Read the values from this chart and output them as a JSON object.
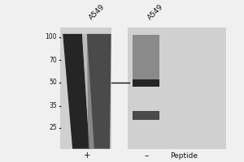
{
  "bg_color": "#f0f0f0",
  "mw_labels": [
    "100",
    "70",
    "50",
    "35",
    "25"
  ],
  "mw_values": [
    100,
    70,
    50,
    35,
    25
  ],
  "col_labels": [
    "A549",
    "A549"
  ],
  "plus_minus_labels": [
    "+",
    "–"
  ],
  "peptide_label": "Peptide",
  "lane_dark": "#252525",
  "lane_mid": "#4a4a4a",
  "lane_light": "#8a8a8a",
  "lane_lighter": "#b0b0b0",
  "panel_bg": "#d0d0d0",
  "fig_bg": "#f0f0f0",
  "divider_color": "#f0f0f0"
}
